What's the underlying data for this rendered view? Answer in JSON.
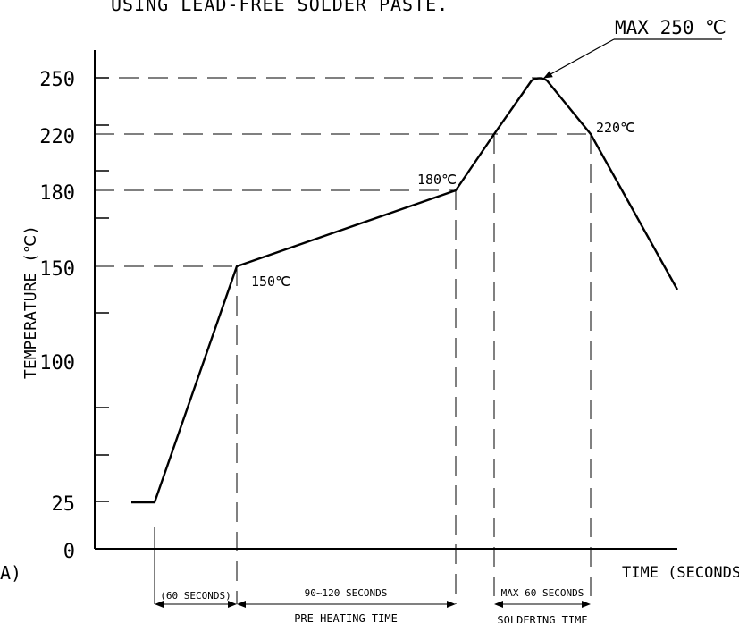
{
  "header_text": "USING LEAD-FREE SOLDER PASTE.",
  "left_edge_text": "A)",
  "axes": {
    "ylabel": "TEMPERATURE (℃)",
    "xlabel": "TIME (SECONDS)",
    "y_ticks": [
      {
        "value": 250,
        "label": "250"
      },
      {
        "value": 220,
        "label": "220"
      },
      {
        "value": 180,
        "label": "180"
      },
      {
        "value": 150,
        "label": "150"
      },
      {
        "value": 100,
        "label": "100"
      },
      {
        "value": 25,
        "label": "25"
      },
      {
        "value": 0,
        "label": "0"
      }
    ]
  },
  "annotations": {
    "max": "MAX 250 ℃",
    "t220": "220℃",
    "t180": "180℃",
    "t150": "150℃"
  },
  "intervals": {
    "ramp": "(60 SECONDS)",
    "preheat": "90~120 SECONDS",
    "preheat_name": "PRE-HEATING TIME",
    "soldering": "MAX 60 SECONDS",
    "soldering_name": "SOLDERING TIME"
  },
  "colors": {
    "line": "#000000",
    "background": "#ffffff"
  }
}
